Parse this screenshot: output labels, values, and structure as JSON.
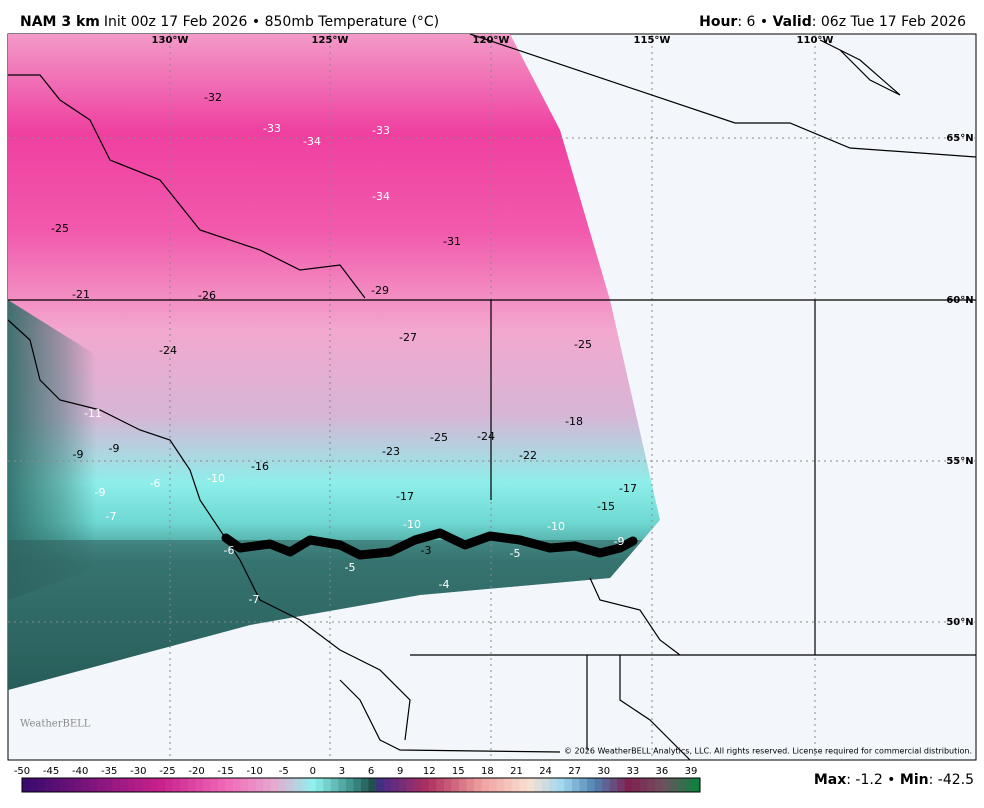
{
  "header": {
    "model": "NAM 3 km",
    "description": "Init 00z 17 Feb 2026 • 850mb Temperature (°C)",
    "hour_label": "Hour",
    "hour": ": 6 • ",
    "valid_label": "Valid",
    "valid": ": 06z Tue 17 Feb 2026"
  },
  "map": {
    "longitudes": [
      "130°W",
      "125°W",
      "120°W",
      "115°W",
      "110°W"
    ],
    "latitudes": [
      "65°N",
      "60°N",
      "55°N",
      "50°N"
    ],
    "labels": [
      -32,
      -33,
      -34,
      -33,
      -34,
      -25,
      -31,
      -21,
      -26,
      -29,
      -27,
      -24,
      -25,
      -11,
      -9,
      -9,
      -18,
      -25,
      -24,
      -23,
      -22,
      -16,
      -6,
      -10,
      -17,
      -9,
      -17,
      -15,
      -7,
      -10,
      -10,
      -6,
      -3,
      -5,
      -9,
      -5,
      -4,
      -7
    ],
    "logo": "WeatherBELL",
    "copyright": "© 2026 WeatherBELL Analytics, LLC. All rights reserved. License required for commercial distribution."
  },
  "colorbar": {
    "ticks": [
      -50,
      -45,
      -40,
      -35,
      -30,
      -25,
      -20,
      -15,
      -10,
      -5,
      0,
      3,
      6,
      9,
      12,
      15,
      18,
      21,
      24,
      27,
      30,
      33,
      36,
      39
    ]
  },
  "footer": {
    "max_label": "Max",
    "max": ": -1.2 • ",
    "min_label": "Min",
    "min": ": -42.5"
  }
}
